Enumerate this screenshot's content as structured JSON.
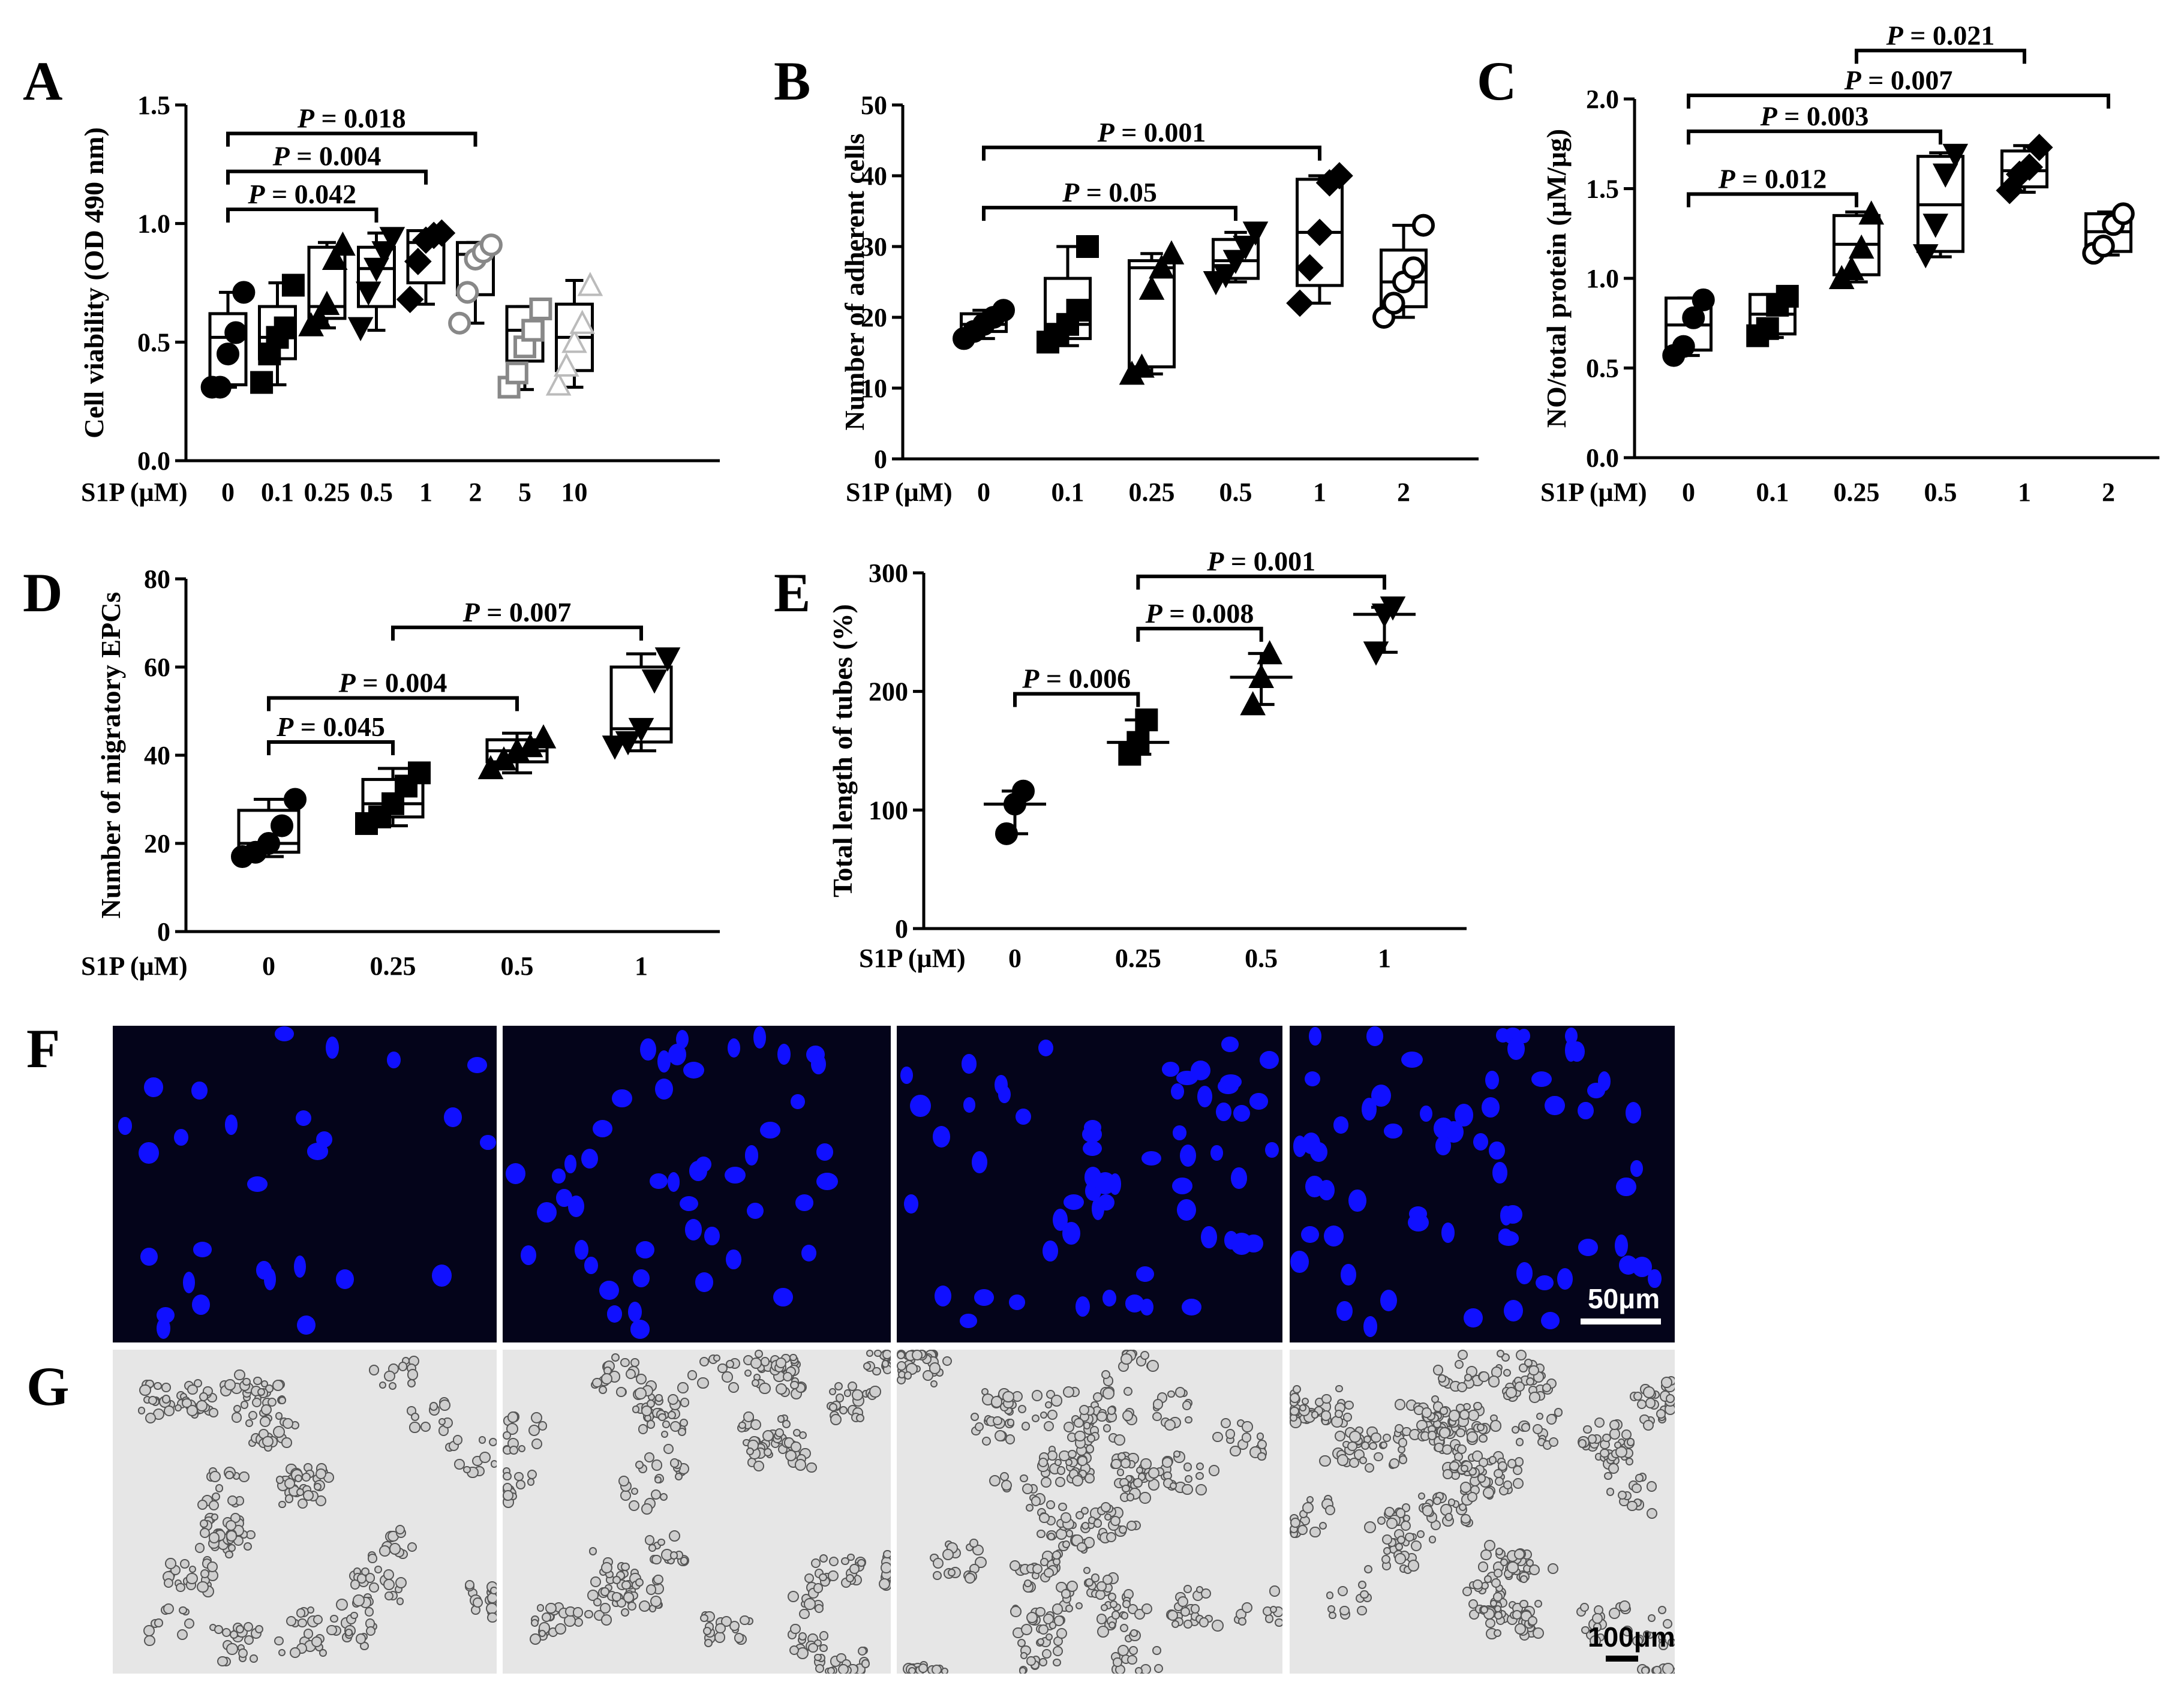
{
  "panels": {
    "A": "A",
    "B": "B",
    "C": "C",
    "D": "D",
    "E": "E",
    "F": "F",
    "G": "G"
  },
  "chart_data": [
    {
      "id": "A",
      "type": "box",
      "ylabel": "Cell viability (OD 490 nm)",
      "xprefix": "S1P (μM)",
      "categories": [
        "0",
        "0.1",
        "0.25",
        "0.5",
        "1",
        "2",
        "5",
        "10"
      ],
      "ylim": [
        0,
        1.5
      ],
      "yticks": [
        "0.0",
        "0.5",
        "1.0",
        "1.5"
      ],
      "boxes": [
        {
          "min": 0.31,
          "q1": 0.32,
          "median": 0.52,
          "q3": 0.62,
          "max": 0.71,
          "points": [
            0.31,
            0.31,
            0.45,
            0.54,
            0.71
          ],
          "marker": "circle",
          "color": "#000000"
        },
        {
          "min": 0.32,
          "q1": 0.43,
          "median": 0.52,
          "q3": 0.65,
          "max": 0.75,
          "points": [
            0.33,
            0.45,
            0.52,
            0.56,
            0.74
          ],
          "marker": "square",
          "color": "#000000"
        },
        {
          "min": 0.56,
          "q1": 0.6,
          "median": 0.65,
          "q3": 0.9,
          "max": 0.92,
          "points": [
            0.57,
            0.6,
            0.66,
            0.85,
            0.91
          ],
          "marker": "triangle",
          "color": "#000000"
        },
        {
          "min": 0.55,
          "q1": 0.65,
          "median": 0.81,
          "q3": 0.9,
          "max": 0.96,
          "points": [
            0.56,
            0.71,
            0.81,
            0.88,
            0.94
          ],
          "marker": "triangle-down",
          "color": "#000000"
        },
        {
          "min": 0.66,
          "q1": 0.75,
          "median": 0.92,
          "q3": 0.97,
          "max": 0.97,
          "points": [
            0.68,
            0.84,
            0.93,
            0.95,
            0.96
          ],
          "marker": "diamond",
          "color": "#000000"
        },
        {
          "min": 0.58,
          "q1": 0.7,
          "median": 0.87,
          "q3": 0.92,
          "max": 0.92,
          "points": [
            0.58,
            0.71,
            0.85,
            0.88,
            0.91
          ],
          "marker": "circle-open",
          "color": "#888888"
        },
        {
          "min": 0.3,
          "q1": 0.42,
          "median": 0.55,
          "q3": 0.65,
          "max": 0.65,
          "points": [
            0.31,
            0.37,
            0.48,
            0.55,
            0.64
          ],
          "marker": "square-open",
          "color": "#888888"
        },
        {
          "min": 0.31,
          "q1": 0.38,
          "median": 0.52,
          "q3": 0.66,
          "max": 0.76,
          "points": [
            0.32,
            0.4,
            0.5,
            0.58,
            0.74
          ],
          "marker": "triangle-open",
          "color": "#bbbbbb"
        }
      ],
      "comparisons": [
        {
          "from": 0,
          "to": 3,
          "label": "P = 0.042",
          "y": 1.06
        },
        {
          "from": 0,
          "to": 4,
          "label": "P = 0.004",
          "y": 1.22
        },
        {
          "from": 0,
          "to": 5,
          "label": "P = 0.018",
          "y": 1.38
        }
      ]
    },
    {
      "id": "B",
      "type": "box",
      "ylabel": "Number of adherent cells",
      "xprefix": "S1P (μM)",
      "categories": [
        "0",
        "0.1",
        "0.25",
        "0.5",
        "1",
        "2"
      ],
      "ylim": [
        0,
        50
      ],
      "yticks": [
        "0",
        "10",
        "20",
        "30",
        "40",
        "50"
      ],
      "boxes": [
        {
          "min": 17,
          "q1": 18,
          "median": 19,
          "q3": 20.5,
          "max": 21,
          "points": [
            17,
            18,
            19,
            20,
            21
          ],
          "marker": "circle",
          "color": "#000000"
        },
        {
          "min": 16,
          "q1": 17,
          "median": 19,
          "q3": 25.5,
          "max": 30,
          "points": [
            16.5,
            17.5,
            19,
            21,
            30
          ],
          "marker": "square",
          "color": "#000000"
        },
        {
          "min": 12,
          "q1": 13,
          "median": 27,
          "q3": 28,
          "max": 29,
          "points": [
            12,
            13,
            24,
            27,
            29
          ],
          "marker": "triangle",
          "color": "#000000"
        },
        {
          "min": 25,
          "q1": 25.5,
          "median": 28,
          "q3": 31,
          "max": 32,
          "points": [
            25,
            26,
            28,
            30,
            32
          ],
          "marker": "triangle-down",
          "color": "#000000"
        },
        {
          "min": 22,
          "q1": 24.5,
          "median": 32,
          "q3": 39.5,
          "max": 40,
          "points": [
            22,
            27,
            32,
            39,
            40
          ],
          "marker": "diamond",
          "color": "#000000"
        },
        {
          "min": 20,
          "q1": 21.5,
          "median": 25,
          "q3": 29.5,
          "max": 33,
          "points": [
            20,
            22,
            25,
            27,
            33
          ],
          "marker": "circle-open",
          "color": "#000000"
        }
      ],
      "comparisons": [
        {
          "from": 0,
          "to": 3,
          "label": "P = 0.05",
          "y": 35.5
        },
        {
          "from": 0,
          "to": 4,
          "label": "P = 0.001",
          "y": 44
        }
      ]
    },
    {
      "id": "C",
      "type": "box",
      "ylabel": "NO/total protein (μM/μg)",
      "xprefix": "S1P (μM)",
      "categories": [
        "0",
        "0.1",
        "0.25",
        "0.5",
        "1",
        "2"
      ],
      "ylim": [
        0,
        2.0
      ],
      "yticks": [
        "0.0",
        "0.5",
        "1.0",
        "1.5",
        "2.0"
      ],
      "boxes": [
        {
          "min": 0.57,
          "q1": 0.6,
          "median": 0.74,
          "q3": 0.89,
          "max": 0.89,
          "points": [
            0.57,
            0.62,
            0.78,
            0.88
          ],
          "marker": "circle",
          "color": "#000000"
        },
        {
          "min": 0.67,
          "q1": 0.69,
          "median": 0.8,
          "q3": 0.91,
          "max": 0.91,
          "points": [
            0.68,
            0.72,
            0.85,
            0.9
          ],
          "marker": "square",
          "color": "#000000"
        },
        {
          "min": 0.98,
          "q1": 1.02,
          "median": 1.19,
          "q3": 1.35,
          "max": 1.37,
          "points": [
            1.0,
            1.05,
            1.17,
            1.36
          ],
          "marker": "triangle",
          "color": "#000000"
        },
        {
          "min": 1.12,
          "q1": 1.15,
          "median": 1.41,
          "q3": 1.68,
          "max": 1.7,
          "points": [
            1.13,
            1.3,
            1.58,
            1.69
          ],
          "marker": "triangle-down",
          "color": "#000000"
        },
        {
          "min": 1.48,
          "q1": 1.51,
          "median": 1.6,
          "q3": 1.71,
          "max": 1.74,
          "points": [
            1.49,
            1.58,
            1.62,
            1.73
          ],
          "marker": "diamond",
          "color": "#000000"
        },
        {
          "min": 1.13,
          "q1": 1.15,
          "median": 1.26,
          "q3": 1.36,
          "max": 1.37,
          "points": [
            1.14,
            1.18,
            1.3,
            1.36
          ],
          "marker": "circle-open",
          "color": "#000000"
        }
      ],
      "comparisons": [
        {
          "from": 0,
          "to": 2,
          "label": "P = 0.012",
          "y": 1.47
        },
        {
          "from": 0,
          "to": 3,
          "label": "P = 0.003",
          "y": 1.82
        },
        {
          "from": 0,
          "to": 5,
          "label": "P = 0.007",
          "y": 2.02
        },
        {
          "from": 2,
          "to": 4,
          "label": "P = 0.021",
          "y": 2.27
        }
      ]
    },
    {
      "id": "D",
      "type": "box",
      "ylabel": "Number of migratory EPCs",
      "xprefix": "S1P (μM)",
      "categories": [
        "0",
        "0.25",
        "0.5",
        "1"
      ],
      "ylim": [
        0,
        80
      ],
      "yticks": [
        "0",
        "20",
        "40",
        "60",
        "80"
      ],
      "boxes": [
        {
          "min": 17,
          "q1": 18,
          "median": 20,
          "q3": 27.5,
          "max": 30,
          "points": [
            17,
            18,
            20,
            24,
            30
          ],
          "marker": "circle",
          "color": "#000000"
        },
        {
          "min": 24,
          "q1": 26,
          "median": 29,
          "q3": 34.5,
          "max": 37,
          "points": [
            24.5,
            26,
            29,
            33,
            36
          ],
          "marker": "square",
          "color": "#000000"
        },
        {
          "min": 36,
          "q1": 38.5,
          "median": 41,
          "q3": 43.5,
          "max": 45,
          "points": [
            37,
            39,
            41,
            42,
            44
          ],
          "marker": "triangle",
          "color": "#000000"
        },
        {
          "min": 41,
          "q1": 43,
          "median": 46,
          "q3": 60,
          "max": 63,
          "points": [
            42,
            43,
            46,
            57,
            62
          ],
          "marker": "triangle-down",
          "color": "#000000"
        }
      ],
      "comparisons": [
        {
          "from": 0,
          "to": 1,
          "label": "P = 0.045",
          "y": 43
        },
        {
          "from": 0,
          "to": 2,
          "label": "P = 0.004",
          "y": 53
        },
        {
          "from": 1,
          "to": 3,
          "label": "P = 0.007",
          "y": 69
        }
      ]
    },
    {
      "id": "E",
      "type": "scatter-mean",
      "ylabel": "Total length of tubes (%)",
      "xprefix": "S1P (μM)",
      "categories": [
        "0",
        "0.25",
        "0.5",
        "1"
      ],
      "ylim": [
        0,
        300
      ],
      "yticks": [
        "0",
        "100",
        "200",
        "300"
      ],
      "groups": [
        {
          "mean": 105,
          "low": 80,
          "high": 116,
          "points": [
            80,
            105,
            116
          ],
          "marker": "circle"
        },
        {
          "mean": 157,
          "low": 147,
          "high": 176,
          "points": [
            147,
            157,
            176
          ],
          "marker": "square"
        },
        {
          "mean": 212,
          "low": 189,
          "high": 232,
          "points": [
            189,
            212,
            232
          ],
          "marker": "triangle"
        },
        {
          "mean": 265,
          "low": 233,
          "high": 271,
          "points": [
            233,
            265,
            271
          ],
          "marker": "triangle-down"
        }
      ],
      "comparisons": [
        {
          "from": 0,
          "to": 1,
          "label": "P = 0.006",
          "y": 198
        },
        {
          "from": 1,
          "to": 2,
          "label": "P = 0.008",
          "y": 253
        },
        {
          "from": 1,
          "to": 3,
          "label": "P = 0.001",
          "y": 297
        }
      ]
    }
  ],
  "images": {
    "fluorescence_scale": "50μm",
    "brightfield_scale": "100μm",
    "colors": {
      "nucleus": "#1010ff",
      "fluo_bg": "#04041a",
      "bright_bg": "#e6e6e6"
    }
  }
}
